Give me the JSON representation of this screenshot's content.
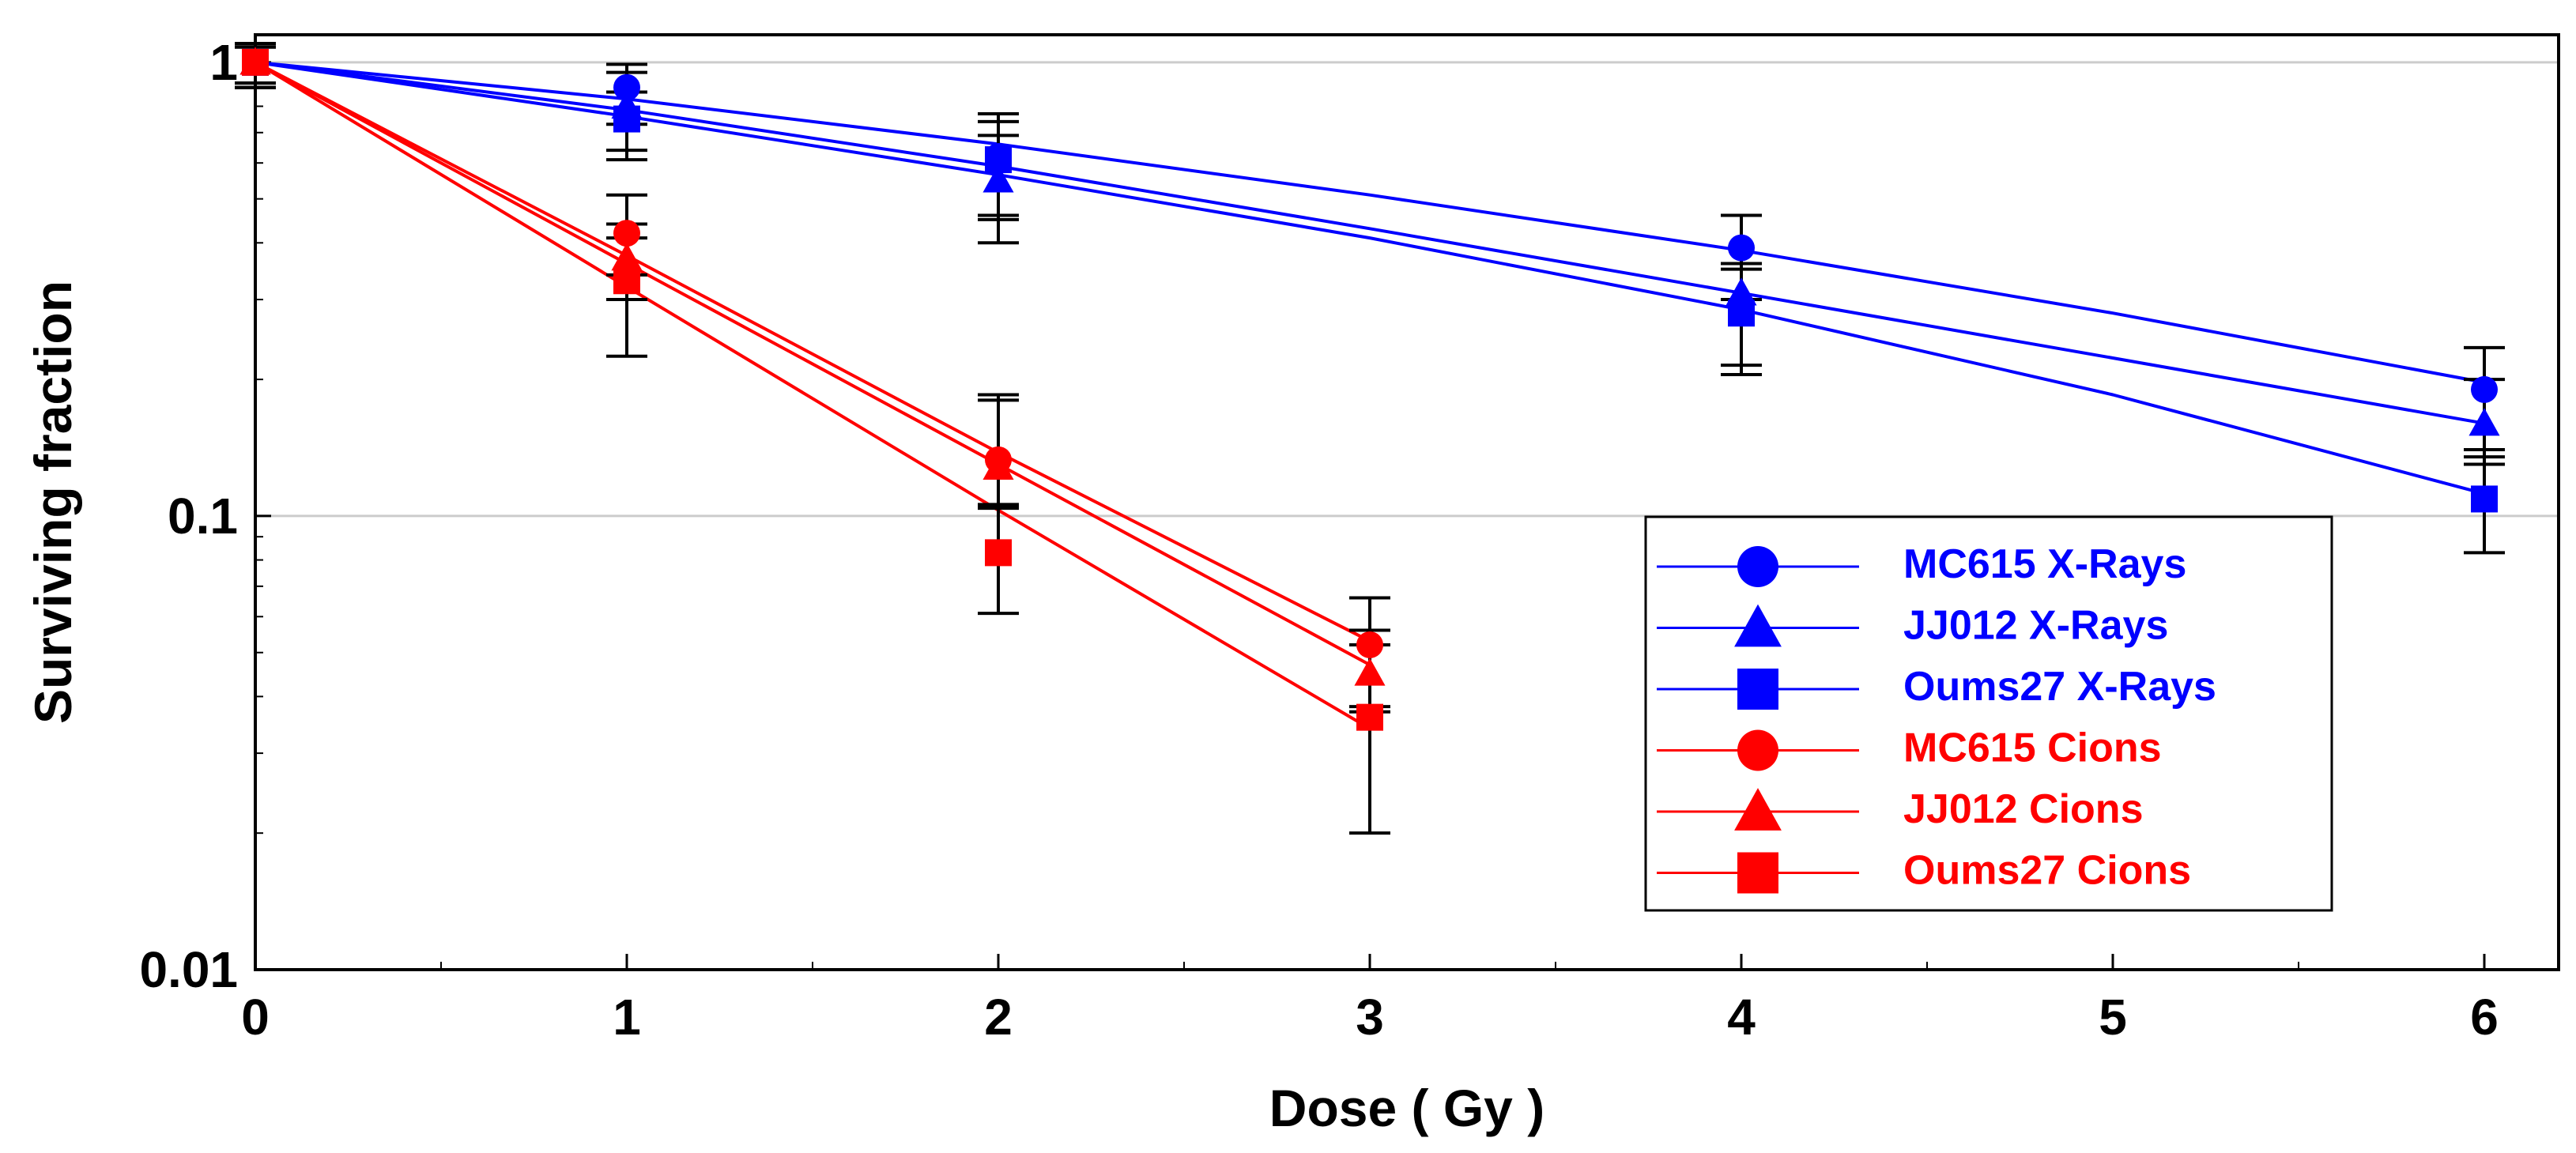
{
  "chart_data": {
    "type": "line",
    "xlabel": "Dose ( Gy )",
    "ylabel": "Surviving fraction",
    "x_scale": "linear",
    "y_scale": "log",
    "xlim": [
      0,
      6.2
    ],
    "ylim": [
      0.01,
      1.15
    ],
    "x_ticks": [
      0,
      1,
      2,
      3,
      4,
      5,
      6
    ],
    "x_tick_labels": [
      "0",
      "1",
      "2",
      "3",
      "4",
      "5",
      "6"
    ],
    "y_ticks": [
      0.01,
      0.1,
      1
    ],
    "y_tick_labels": [
      "0.01",
      "0.1",
      "1"
    ],
    "grid": {
      "horizontal": true,
      "vertical": false,
      "color": "#cccccc"
    },
    "legend_position": "lower-right",
    "series": [
      {
        "name": "MC615 X-Rays",
        "color": "#0000ff",
        "marker": "circle",
        "points": [
          {
            "x": 0,
            "y": 1.0,
            "err": [
              0.88,
              1.1
            ]
          },
          {
            "x": 1,
            "y": 0.88,
            "err": [
              0.73,
              0.99
            ]
          },
          {
            "x": 2,
            "y": 0.62,
            "err": [
              0.46,
              0.77
            ]
          },
          {
            "x": 4,
            "y": 0.39,
            "err": [
              0.3,
              0.46
            ]
          },
          {
            "x": 6,
            "y": 0.19,
            "err": [
              0.14,
              0.235
            ]
          }
        ],
        "fit": [
          [
            0,
            1.0
          ],
          [
            1,
            0.83
          ],
          [
            2,
            0.66
          ],
          [
            3,
            0.51
          ],
          [
            4,
            0.385
          ],
          [
            5,
            0.28
          ],
          [
            6,
            0.197
          ]
        ]
      },
      {
        "name": "JJ012 X-Rays",
        "color": "#0000ff",
        "marker": "triangle",
        "points": [
          {
            "x": 0,
            "y": 1.0,
            "err": [
              0.9,
              1.08
            ]
          },
          {
            "x": 1,
            "y": 0.8,
            "err": [
              0.64,
              0.95
            ]
          },
          {
            "x": 2,
            "y": 0.55,
            "err": [
              0.4,
              0.69
            ]
          },
          {
            "x": 4,
            "y": 0.31,
            "err": [
              0.215,
              0.36
            ]
          },
          {
            "x": 6,
            "y": 0.16,
            "err": [
              0.13,
              0.2
            ]
          }
        ],
        "fit": [
          [
            0,
            1.0
          ],
          [
            1,
            0.785
          ],
          [
            2,
            0.59
          ],
          [
            3,
            0.43
          ],
          [
            4,
            0.31
          ],
          [
            5,
            0.223
          ],
          [
            6,
            0.16
          ]
        ]
      },
      {
        "name": "Oums27 X-Rays",
        "color": "#0000ff",
        "marker": "square",
        "points": [
          {
            "x": 0,
            "y": 1.0,
            "err": [
              0.9,
              1.08
            ]
          },
          {
            "x": 1,
            "y": 0.75,
            "err": [
              0.61,
              0.86
            ]
          },
          {
            "x": 2,
            "y": 0.61,
            "err": [
              0.45,
              0.74
            ]
          },
          {
            "x": 4,
            "y": 0.28,
            "err": [
              0.205,
              0.35
            ]
          },
          {
            "x": 6,
            "y": 0.109,
            "err": [
              0.083,
              0.135
            ]
          }
        ],
        "fit": [
          [
            0,
            1.0
          ],
          [
            1,
            0.76
          ],
          [
            2,
            0.565
          ],
          [
            3,
            0.41
          ],
          [
            4,
            0.285
          ],
          [
            5,
            0.185
          ],
          [
            6,
            0.112
          ]
        ]
      },
      {
        "name": "MC615 Cions",
        "color": "#ff0000",
        "marker": "circle",
        "points": [
          {
            "x": 0,
            "y": 1.0,
            "err": [
              0.88,
              1.1
            ]
          },
          {
            "x": 1,
            "y": 0.42,
            "err": [
              0.34,
              0.51
            ]
          },
          {
            "x": 2,
            "y": 0.133,
            "err": [
              0.106,
              0.185
            ]
          },
          {
            "x": 3,
            "y": 0.052,
            "err": [
              0.038,
              0.066
            ]
          }
        ],
        "fit": [
          [
            0,
            1.0
          ],
          [
            1,
            0.375
          ],
          [
            2,
            0.138
          ],
          [
            3,
            0.053
          ]
        ]
      },
      {
        "name": "JJ012 Cions",
        "color": "#ff0000",
        "marker": "triangle",
        "points": [
          {
            "x": 0,
            "y": 1.0,
            "err": [
              0.88,
              1.1
            ]
          },
          {
            "x": 1,
            "y": 0.37,
            "err": [
              0.3,
              0.44
            ]
          },
          {
            "x": 2,
            "y": 0.128,
            "err": [
              0.105,
              0.18
            ]
          },
          {
            "x": 3,
            "y": 0.045,
            "err": [
              0.037,
              0.056
            ]
          }
        ],
        "fit": [
          [
            0,
            1.0
          ],
          [
            1,
            0.36
          ],
          [
            2,
            0.13
          ],
          [
            3,
            0.047
          ]
        ]
      },
      {
        "name": "Oums27 Cions",
        "color": "#ff0000",
        "marker": "square",
        "points": [
          {
            "x": 0,
            "y": 1.0,
            "err": [
              0.88,
              1.1
            ]
          },
          {
            "x": 1,
            "y": 0.33,
            "err": [
              0.225,
              0.41
            ]
          },
          {
            "x": 2,
            "y": 0.083,
            "err": [
              0.061,
              0.104
            ]
          },
          {
            "x": 3,
            "y": 0.036,
            "err": [
              0.02,
              0.052
            ]
          }
        ],
        "fit": [
          [
            0,
            1.0
          ],
          [
            1,
            0.32
          ],
          [
            2,
            0.103
          ],
          [
            3,
            0.034
          ]
        ]
      }
    ]
  }
}
